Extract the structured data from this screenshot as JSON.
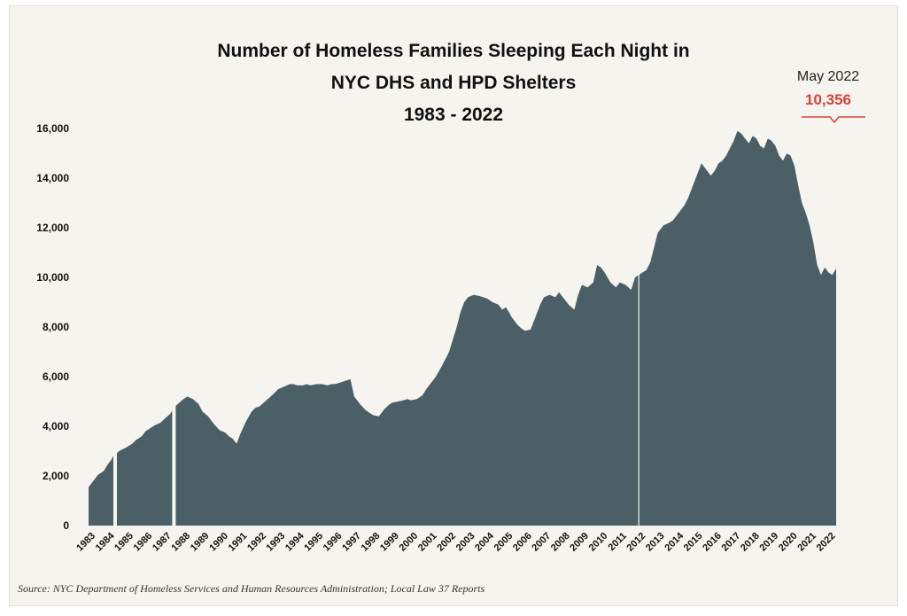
{
  "chart_data": {
    "type": "area",
    "title_lines": [
      "Number of Homeless Families Sleeping Each Night in",
      "NYC DHS and HPD Shelters",
      "1983 - 2022"
    ],
    "xlabel": "",
    "ylabel": "",
    "ylim": [
      0,
      16000
    ],
    "yticks": [
      0,
      2000,
      4000,
      6000,
      8000,
      10000,
      12000,
      14000,
      16000
    ],
    "ytick_labels": [
      "0",
      "2,000",
      "4,000",
      "6,000",
      "8,000",
      "10,000",
      "12,000",
      "14,000",
      "16,000"
    ],
    "xlim": [
      1983,
      2022.4
    ],
    "xtick_labels": [
      "1983",
      "1984",
      "1985",
      "1986",
      "1987",
      "1988",
      "1989",
      "1990",
      "1991",
      "1992",
      "1993",
      "1994",
      "1995",
      "1996",
      "1997",
      "1998",
      "1999",
      "2000",
      "2001",
      "2002",
      "2003",
      "2004",
      "2005",
      "2006",
      "2007",
      "2008",
      "2009",
      "2010",
      "2011",
      "2012",
      "2013",
      "2014",
      "2015",
      "2016",
      "2017",
      "2018",
      "2019",
      "2020",
      "2021",
      "2022"
    ],
    "grid": false,
    "color": "#4b5f66",
    "gap_markers": [
      1984.4,
      1987.5,
      2012.0
    ],
    "series": [
      {
        "x": [
          1983.0,
          1983.2,
          1983.5,
          1983.8,
          1984.0,
          1984.2,
          1984.3,
          1984.4,
          1984.6,
          1985.0,
          1985.3,
          1985.5,
          1985.8,
          1986.0,
          1986.3,
          1986.5,
          1986.8,
          1987.0,
          1987.3,
          1987.5,
          1987.7,
          1988.0,
          1988.2,
          1988.5,
          1988.8,
          1989.0,
          1989.3,
          1989.6,
          1989.9,
          1990.2,
          1990.4,
          1990.6,
          1990.8,
          1991.0,
          1991.3,
          1991.6,
          1991.8,
          1992.0,
          1992.3,
          1992.6,
          1992.8,
          1993.0,
          1993.3,
          1993.6,
          1993.8,
          1994.0,
          1994.3,
          1994.5,
          1994.7,
          1995.0,
          1995.3,
          1995.6,
          1995.8,
          1996.0,
          1996.2,
          1996.4,
          1996.6,
          1996.8,
          1997.0,
          1997.3,
          1997.6,
          1997.8,
          1998.0,
          1998.3,
          1998.6,
          1998.8,
          1999.0,
          1999.3,
          1999.6,
          1999.8,
          2000.0,
          2000.3,
          2000.6,
          2000.8,
          2001.0,
          2001.3,
          2001.6,
          2001.8,
          2002.0,
          2002.2,
          2002.4,
          2002.6,
          2002.8,
          2003.0,
          2003.3,
          2003.6,
          2003.8,
          2004.0,
          2004.3,
          2004.6,
          2004.8,
          2005.0,
          2005.3,
          2005.6,
          2005.8,
          2006.0,
          2006.3,
          2006.5,
          2006.8,
          2007.0,
          2007.3,
          2007.6,
          2007.8,
          2008.0,
          2008.3,
          2008.6,
          2008.8,
          2009.0,
          2009.3,
          2009.6,
          2009.8,
          2010.0,
          2010.2,
          2010.5,
          2010.8,
          2011.0,
          2011.3,
          2011.6,
          2011.8,
          2012.0,
          2012.2,
          2012.4,
          2012.6,
          2012.8,
          2013.0,
          2013.3,
          2013.6,
          2013.8,
          2014.0,
          2014.2,
          2014.4,
          2014.6,
          2014.8,
          2015.0,
          2015.3,
          2015.6,
          2015.8,
          2016.0,
          2016.2,
          2016.4,
          2016.6,
          2016.8,
          2017.0,
          2017.2,
          2017.4,
          2017.6,
          2017.8,
          2018.0,
          2018.2,
          2018.4,
          2018.6,
          2018.8,
          2019.0,
          2019.2,
          2019.4,
          2019.6,
          2019.8,
          2020.0,
          2020.2,
          2020.4,
          2020.6,
          2020.8,
          2021.0,
          2021.2,
          2021.4,
          2021.6,
          2021.8,
          2022.0,
          2022.2,
          2022.4
        ],
        "y": [
          1550,
          1750,
          2050,
          2200,
          2450,
          2650,
          2800,
          2850,
          3000,
          3150,
          3300,
          3450,
          3600,
          3800,
          3950,
          4050,
          4150,
          4300,
          4500,
          4750,
          4900,
          5100,
          5200,
          5100,
          4900,
          4600,
          4400,
          4100,
          3850,
          3750,
          3600,
          3500,
          3300,
          3700,
          4200,
          4600,
          4750,
          4800,
          5000,
          5200,
          5350,
          5500,
          5600,
          5700,
          5700,
          5650,
          5650,
          5700,
          5650,
          5700,
          5700,
          5650,
          5700,
          5700,
          5750,
          5800,
          5850,
          5900,
          5200,
          4900,
          4650,
          4550,
          4450,
          4400,
          4700,
          4850,
          4950,
          5000,
          5050,
          5100,
          5050,
          5100,
          5250,
          5500,
          5700,
          6000,
          6400,
          6700,
          7000,
          7500,
          8000,
          8600,
          9000,
          9200,
          9300,
          9250,
          9200,
          9150,
          9000,
          8900,
          8700,
          8800,
          8400,
          8100,
          7950,
          7850,
          7900,
          8300,
          8900,
          9200,
          9300,
          9200,
          9400,
          9200,
          8900,
          8700,
          9300,
          9700,
          9600,
          9800,
          10500,
          10400,
          10200,
          9800,
          9600,
          9800,
          9700,
          9500,
          10000,
          10100,
          10200,
          10300,
          10600,
          11200,
          11800,
          12100,
          12200,
          12300,
          12500,
          12700,
          12900,
          13200,
          13600,
          14000,
          14600,
          14300,
          14100,
          14300,
          14600,
          14700,
          14900,
          15200,
          15500,
          15900,
          15800,
          15600,
          15400,
          15700,
          15600,
          15300,
          15200,
          15600,
          15500,
          15300,
          14900,
          14700,
          15000,
          14900,
          14500,
          13700,
          13000,
          12600,
          12100,
          11400,
          10500,
          10100,
          10400,
          10200,
          10100,
          10356
        ]
      }
    ],
    "callout": {
      "label": "May 2022",
      "value": "10,356",
      "value_number": 10356,
      "value_color": "#d9403a"
    },
    "source": "Source:  NYC Department of Homeless Services and Human Resources Administration; Local Law 37 Reports"
  }
}
